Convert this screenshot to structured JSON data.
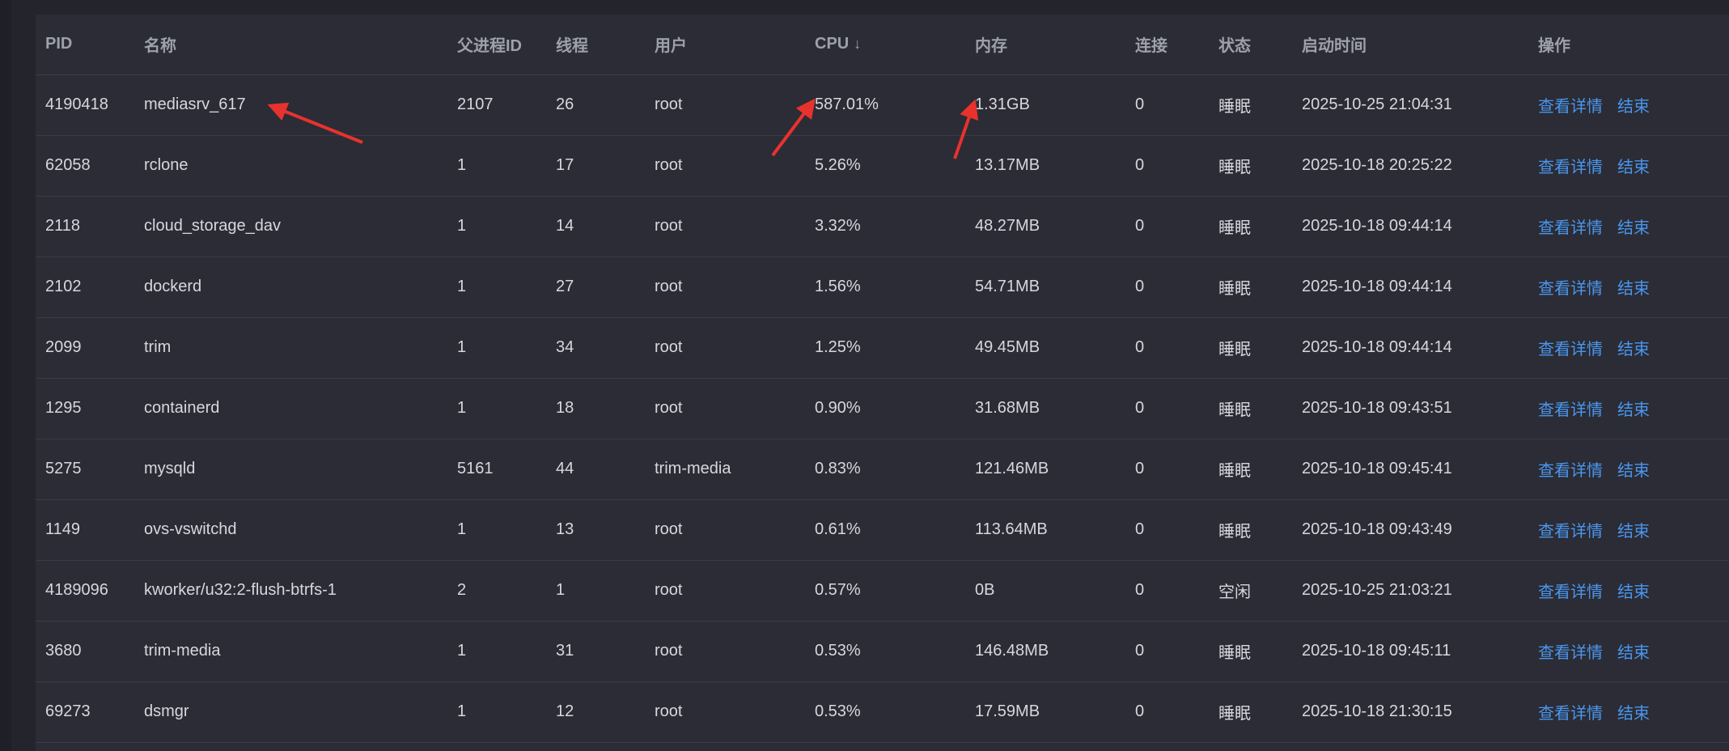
{
  "table": {
    "columns": {
      "pid": "PID",
      "name": "名称",
      "ppid": "父进程ID",
      "threads": "线程",
      "user": "用户",
      "cpu": "CPU",
      "cpu_sort": "↓",
      "memory": "内存",
      "connections": "连接",
      "state": "状态",
      "start_time": "启动时间",
      "actions": "操作"
    },
    "actions": {
      "details": "查看详情",
      "kill": "结束"
    },
    "rows": [
      {
        "pid": "4190418",
        "name": "mediasrv_617",
        "ppid": "2107",
        "threads": "26",
        "user": "root",
        "cpu": "587.01%",
        "memory": "1.31GB",
        "connections": "0",
        "state": "睡眠",
        "start_time": "2025-10-25 21:04:31"
      },
      {
        "pid": "62058",
        "name": "rclone",
        "ppid": "1",
        "threads": "17",
        "user": "root",
        "cpu": "5.26%",
        "memory": "13.17MB",
        "connections": "0",
        "state": "睡眠",
        "start_time": "2025-10-18 20:25:22"
      },
      {
        "pid": "2118",
        "name": "cloud_storage_dav",
        "ppid": "1",
        "threads": "14",
        "user": "root",
        "cpu": "3.32%",
        "memory": "48.27MB",
        "connections": "0",
        "state": "睡眠",
        "start_time": "2025-10-18 09:44:14"
      },
      {
        "pid": "2102",
        "name": "dockerd",
        "ppid": "1",
        "threads": "27",
        "user": "root",
        "cpu": "1.56%",
        "memory": "54.71MB",
        "connections": "0",
        "state": "睡眠",
        "start_time": "2025-10-18 09:44:14"
      },
      {
        "pid": "2099",
        "name": "trim",
        "ppid": "1",
        "threads": "34",
        "user": "root",
        "cpu": "1.25%",
        "memory": "49.45MB",
        "connections": "0",
        "state": "睡眠",
        "start_time": "2025-10-18 09:44:14"
      },
      {
        "pid": "1295",
        "name": "containerd",
        "ppid": "1",
        "threads": "18",
        "user": "root",
        "cpu": "0.90%",
        "memory": "31.68MB",
        "connections": "0",
        "state": "睡眠",
        "start_time": "2025-10-18 09:43:51"
      },
      {
        "pid": "5275",
        "name": "mysqld",
        "ppid": "5161",
        "threads": "44",
        "user": "trim-media",
        "cpu": "0.83%",
        "memory": "121.46MB",
        "connections": "0",
        "state": "睡眠",
        "start_time": "2025-10-18 09:45:41"
      },
      {
        "pid": "1149",
        "name": "ovs-vswitchd",
        "ppid": "1",
        "threads": "13",
        "user": "root",
        "cpu": "0.61%",
        "memory": "113.64MB",
        "connections": "0",
        "state": "睡眠",
        "start_time": "2025-10-18 09:43:49"
      },
      {
        "pid": "4189096",
        "name": "kworker/u32:2-flush-btrfs-1",
        "ppid": "2",
        "threads": "1",
        "user": "root",
        "cpu": "0.57%",
        "memory": "0B",
        "connections": "0",
        "state": "空闲",
        "start_time": "2025-10-25 21:03:21"
      },
      {
        "pid": "3680",
        "name": "trim-media",
        "ppid": "1",
        "threads": "31",
        "user": "root",
        "cpu": "0.53%",
        "memory": "146.48MB",
        "connections": "0",
        "state": "睡眠",
        "start_time": "2025-10-18 09:45:11"
      },
      {
        "pid": "69273",
        "name": "dsmgr",
        "ppid": "1",
        "threads": "12",
        "user": "root",
        "cpu": "0.53%",
        "memory": "17.59MB",
        "connections": "0",
        "state": "睡眠",
        "start_time": "2025-10-18 21:30:15"
      }
    ]
  },
  "colors": {
    "page_bg": "#23242c",
    "panel_bg": "#2b2c35",
    "header_text": "#9ea0aa",
    "cell_text": "#d7d8de",
    "link": "#4a96ee",
    "annotation_arrow": "#e8322e"
  }
}
